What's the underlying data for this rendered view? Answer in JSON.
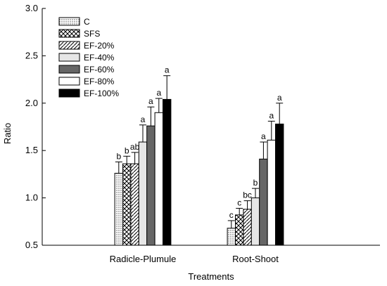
{
  "chart_data": {
    "type": "bar",
    "xlabel": "Treatments",
    "ylabel": "Ratio",
    "ylim": [
      0.5,
      3.0
    ],
    "yticks": [
      "0.5",
      "1.0",
      "1.5",
      "2.0",
      "2.5",
      "3.0"
    ],
    "grid": false,
    "legend_position": "top-left",
    "categories": [
      "Radicle-Plumule",
      "Root-Shoot"
    ],
    "series": [
      {
        "name": "C",
        "pattern": "dots",
        "values": [
          1.26,
          0.68
        ],
        "errors": [
          0.12,
          0.08
        ],
        "sig": [
          "b",
          "c"
        ]
      },
      {
        "name": "SFS",
        "pattern": "crosshatch",
        "values": [
          1.36,
          0.82
        ],
        "errors": [
          0.08,
          0.07
        ],
        "sig": [
          "b",
          "c"
        ]
      },
      {
        "name": "EF-20%",
        "pattern": "diagonal",
        "values": [
          1.36,
          0.88
        ],
        "errors": [
          0.12,
          0.09
        ],
        "sig": [
          "ab",
          "bc"
        ]
      },
      {
        "name": "EF-40%",
        "pattern": "light-gray",
        "values": [
          1.59,
          1.0
        ],
        "errors": [
          0.18,
          0.1
        ],
        "sig": [
          "a",
          "b"
        ]
      },
      {
        "name": "EF-60%",
        "pattern": "dark-gray",
        "values": [
          1.76,
          1.41
        ],
        "errors": [
          0.2,
          0.18
        ],
        "sig": [
          "a",
          "a"
        ]
      },
      {
        "name": "EF-80%",
        "pattern": "white",
        "values": [
          1.9,
          1.61
        ],
        "errors": [
          0.15,
          0.2
        ],
        "sig": [
          "a",
          "a"
        ]
      },
      {
        "name": "EF-100%",
        "pattern": "black",
        "values": [
          2.04,
          1.78
        ],
        "errors": [
          0.25,
          0.22
        ],
        "sig": [
          "a",
          "a"
        ]
      }
    ],
    "colors": {
      "light-gray": "#e6e6e6",
      "dark-gray": "#666666",
      "white": "#ffffff",
      "black": "#000000"
    }
  }
}
